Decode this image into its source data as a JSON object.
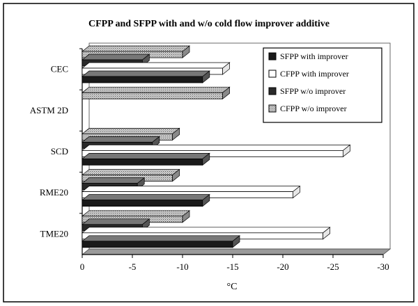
{
  "chart_data": {
    "type": "bar",
    "orientation": "horizontal",
    "title": "CFPP and SFPP with and w/o cold flow improver additive",
    "xlabel": "°C",
    "ylabel": "",
    "xlim": [
      0,
      -30
    ],
    "x_ticks": [
      0,
      -5,
      -10,
      -15,
      -20,
      -25,
      -30
    ],
    "tick_labels": [
      "0",
      "-5",
      "-10",
      "-15",
      "-20",
      "-25",
      "-30"
    ],
    "categories": [
      "CEC",
      "ASTM 2D",
      "SCD",
      "RME20",
      "TME20"
    ],
    "series": [
      {
        "name": "SFPP with improver",
        "values": [
          -12,
          0,
          -12,
          -12,
          -15
        ]
      },
      {
        "name": "CFPP with improver",
        "values": [
          -14,
          0,
          -26,
          -21,
          -24
        ]
      },
      {
        "name": "SFPP w/o improver",
        "values": [
          -6,
          0,
          -7,
          -5.5,
          -6
        ]
      },
      {
        "name": "CFPP w/o improver",
        "values": [
          -10,
          -14,
          -9,
          -9,
          -10
        ]
      }
    ],
    "legend_position": "top-right",
    "colors": {
      "SFPP with improver": "#1a1a1a",
      "CFPP with improver": "#ffffff",
      "SFPP w/o improver": "#2a2a2a",
      "CFPP w/o improver": "#b5b5b5"
    }
  }
}
